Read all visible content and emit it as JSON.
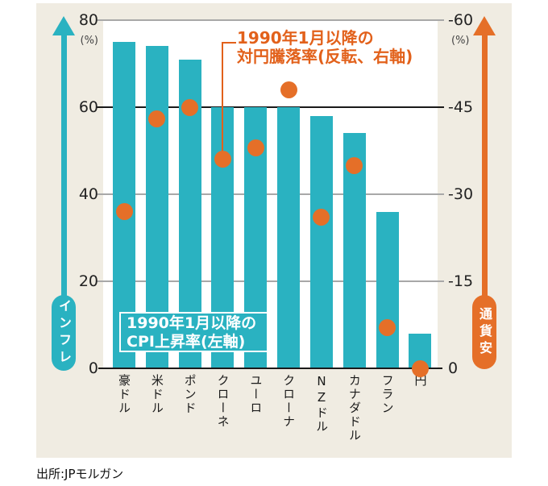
{
  "chart_data": {
    "type": "bar",
    "categories": [
      "豪ドル",
      "米ドル",
      "ポンド",
      "クローネ",
      "ユーロ",
      "クローナ",
      "NZドル",
      "カナダドル",
      "フラン",
      "円"
    ],
    "series": [
      {
        "name": "1990年1月以降のCPI上昇率(左軸)",
        "type": "bar",
        "axis": "left",
        "color": "#2ab2c1",
        "values": [
          75,
          74,
          71,
          60,
          60,
          60,
          58,
          54,
          36,
          8
        ]
      },
      {
        "name": "1990年1月以降の対円騰落率(反転、右軸)",
        "type": "scatter",
        "axis": "right",
        "color": "#e56f28",
        "values": [
          -27,
          -43,
          -45,
          -36,
          -38,
          -48,
          -26,
          -35,
          -7,
          0
        ]
      }
    ],
    "left_axis": {
      "label": "インフレ",
      "unit": "(%)",
      "ticks": [
        80,
        60,
        40,
        20,
        0
      ],
      "range": [
        0,
        80
      ]
    },
    "right_axis": {
      "label": "通貨安",
      "unit": "(%)",
      "ticks": [
        -60,
        -45,
        -30,
        -15,
        0
      ],
      "range": [
        0,
        -60
      ],
      "inverted": true
    },
    "grid": "on",
    "highlight_gridline_left_value": 60,
    "source": "出所:JPモルガン"
  },
  "annotation": {
    "line1": "1990年1月以降の",
    "line2": "対円騰落率(反転、右軸)",
    "points_to_category": "クローネ"
  },
  "cpi_box": {
    "line1": "1990年1月以降の",
    "line2": "CPI上昇率(左軸)"
  },
  "colors": {
    "bar_teal": "#2ab2c1",
    "dot_orange": "#e56f28",
    "annotation_orange": "#e2611b",
    "card_beige": "#f0ece2"
  }
}
